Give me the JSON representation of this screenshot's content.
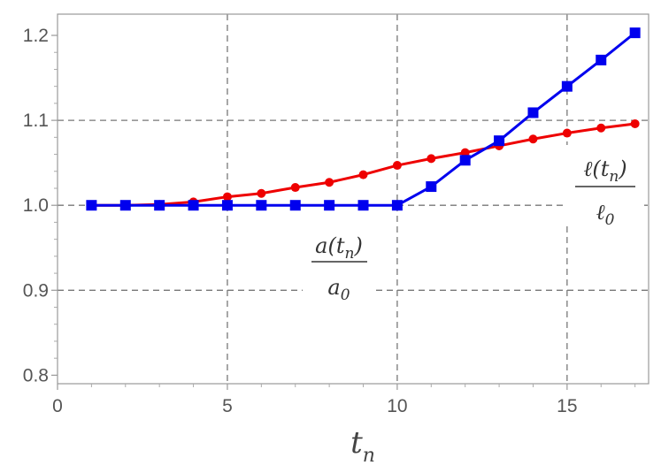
{
  "chart_data": {
    "type": "line",
    "title": "",
    "xlabel": "t_n",
    "ylabel": "",
    "xlim": [
      0,
      17.4
    ],
    "ylim": [
      0.79,
      1.225
    ],
    "xticks": [
      0,
      5,
      10,
      15
    ],
    "yticks": [
      0.8,
      0.9,
      1.0,
      1.1,
      1.2
    ],
    "ytick_labels": [
      "0.8",
      "0.9",
      "1.0",
      "1.1",
      "1.2"
    ],
    "grid": {
      "x": [
        5,
        10,
        15
      ],
      "y": [
        0.9,
        1.0,
        1.1
      ],
      "style": "dashed"
    },
    "series": [
      {
        "label": "ℓ(tn)/ℓ0",
        "color": "#ee0000",
        "marker": "circle",
        "x": [
          1,
          2,
          3,
          4,
          5,
          6,
          7,
          8,
          9,
          10,
          11,
          12,
          13,
          14,
          15,
          16,
          17
        ],
        "values": [
          1.0,
          1.0,
          1.001,
          1.004,
          1.01,
          1.014,
          1.021,
          1.027,
          1.036,
          1.047,
          1.055,
          1.062,
          1.07,
          1.078,
          1.085,
          1.091,
          1.096
        ]
      },
      {
        "label": "a(tn)/a0",
        "color": "#0000ee",
        "marker": "square",
        "x": [
          1,
          2,
          3,
          4,
          5,
          6,
          7,
          8,
          9,
          10,
          11,
          12,
          13,
          14,
          15,
          16,
          17
        ],
        "values": [
          1.0,
          1.0,
          1.0,
          1.0,
          1.0,
          1.0,
          1.0,
          1.0,
          1.0,
          1.0,
          1.022,
          1.053,
          1.076,
          1.109,
          1.14,
          1.171,
          1.203
        ]
      }
    ],
    "annotations": [
      {
        "series": "a",
        "num": "a(tn)",
        "den": "a0"
      },
      {
        "series": "l",
        "num": "ℓ(tn)",
        "den": "ℓ0"
      }
    ]
  }
}
